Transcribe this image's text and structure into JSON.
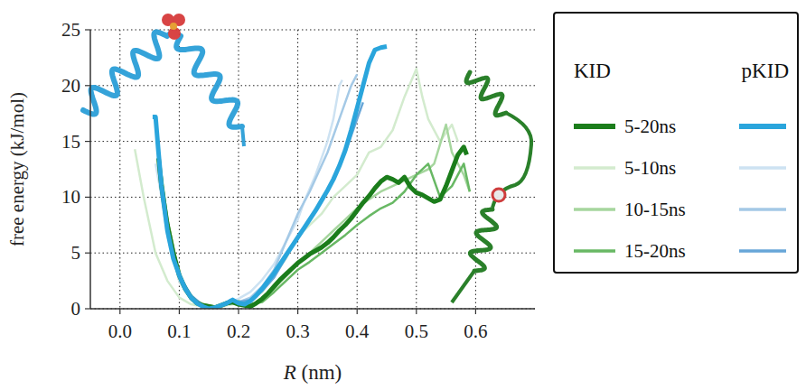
{
  "chart_data": {
    "type": "line",
    "x_label": "R (nm)",
    "y_label": "free energy (kJ/mol)",
    "xlim": [
      -0.05,
      0.7
    ],
    "ylim": [
      0,
      25
    ],
    "xticks": [
      {
        "value": 0,
        "label": "0.0"
      },
      0.1,
      0.2,
      0.3,
      0.4,
      0.5,
      0.6
    ],
    "yticks": [
      0,
      5,
      10,
      15,
      20,
      25
    ],
    "grid": true,
    "legend": "right",
    "groups": [
      "KID",
      "pKID"
    ],
    "series": [
      {
        "name": "5-20ns",
        "group": "KID",
        "color": "#1b7d1b",
        "line_style": "thick",
        "x": [
          0.065,
          0.07,
          0.08,
          0.09,
          0.1,
          0.11,
          0.12,
          0.13,
          0.14,
          0.15,
          0.16,
          0.17,
          0.18,
          0.19,
          0.2,
          0.21,
          0.22,
          0.23,
          0.24,
          0.25,
          0.26,
          0.27,
          0.28,
          0.29,
          0.3,
          0.31,
          0.32,
          0.33,
          0.34,
          0.35,
          0.36,
          0.37,
          0.38,
          0.39,
          0.4,
          0.41,
          0.42,
          0.43,
          0.44,
          0.45,
          0.46,
          0.47,
          0.48,
          0.49,
          0.5,
          0.51,
          0.52,
          0.53,
          0.54,
          0.55,
          0.56,
          0.57,
          0.58,
          0.585
        ],
        "values": [
          13.5,
          11,
          7.5,
          5,
          3,
          1.8,
          1,
          0.5,
          0.3,
          0.2,
          0.1,
          0.3,
          0.5,
          0.6,
          0.4,
          0.3,
          0.2,
          0.5,
          0.9,
          1.4,
          2,
          2.6,
          3.1,
          3.6,
          4.1,
          4.5,
          4.9,
          5.2,
          5.5,
          5.9,
          6.4,
          7,
          7.5,
          8.1,
          8.8,
          9.5,
          10.1,
          10.8,
          11.4,
          11.8,
          11.6,
          11.3,
          11.8,
          10.9,
          10.4,
          10.2,
          9.9,
          9.6,
          9.8,
          11,
          12.4,
          13.8,
          14.5,
          13.8
        ]
      },
      {
        "name": "5-10ns",
        "group": "KID",
        "color": "#d3ebce",
        "line_style": "solid",
        "x": [
          0.025,
          0.04,
          0.06,
          0.08,
          0.1,
          0.12,
          0.14,
          0.16,
          0.18,
          0.2,
          0.22,
          0.24,
          0.26,
          0.28,
          0.3,
          0.32,
          0.34,
          0.36,
          0.38,
          0.4,
          0.42,
          0.44,
          0.46,
          0.48,
          0.5,
          0.51,
          0.52,
          0.54,
          0.56,
          0.57
        ],
        "values": [
          14.3,
          10,
          5,
          2.5,
          1,
          0.4,
          0.2,
          0,
          0.3,
          0.5,
          0.8,
          1.5,
          3,
          4.5,
          6.5,
          7.5,
          8.5,
          10,
          11,
          12,
          14,
          14.5,
          16,
          19,
          21.5,
          19,
          17,
          15,
          16.5,
          15
        ]
      },
      {
        "name": "10-15ns",
        "group": "KID",
        "color": "#a6d69e",
        "line_style": "solid",
        "x": [
          0.065,
          0.08,
          0.1,
          0.12,
          0.14,
          0.16,
          0.18,
          0.2,
          0.22,
          0.24,
          0.26,
          0.28,
          0.3,
          0.32,
          0.34,
          0.36,
          0.38,
          0.4,
          0.42,
          0.44,
          0.46,
          0.48,
          0.5,
          0.52,
          0.53,
          0.55,
          0.56,
          0.58,
          0.59
        ],
        "values": [
          13,
          7,
          2.5,
          0.8,
          0.3,
          0.1,
          0.4,
          0.5,
          0.3,
          0.8,
          1.8,
          2.9,
          4,
          5,
          6,
          7,
          8,
          9,
          9.8,
          10.5,
          11,
          11.5,
          12,
          12.5,
          13,
          16.5,
          14,
          12,
          10.5
        ]
      },
      {
        "name": "15-20ns",
        "group": "KID",
        "color": "#68b864",
        "line_style": "solid",
        "x": [
          0.07,
          0.08,
          0.1,
          0.12,
          0.14,
          0.16,
          0.18,
          0.2,
          0.22,
          0.24,
          0.26,
          0.28,
          0.3,
          0.32,
          0.34,
          0.36,
          0.38,
          0.4,
          0.42,
          0.44,
          0.46,
          0.48,
          0.5,
          0.52,
          0.54,
          0.56,
          0.58,
          0.59
        ],
        "values": [
          12,
          8,
          3,
          1,
          0.4,
          0.2,
          0.5,
          0.7,
          0.4,
          0.6,
          1.5,
          2.5,
          3.5,
          4.2,
          5,
          5.8,
          6.6,
          7.5,
          8.3,
          9,
          9.5,
          10.5,
          12,
          13,
          10,
          11,
          13,
          10.5
        ]
      },
      {
        "name": "5-20ns",
        "group": "pKID",
        "color": "#2aa5dc",
        "line_style": "thick",
        "x": [
          0.055,
          0.06,
          0.065,
          0.07,
          0.08,
          0.09,
          0.1,
          0.11,
          0.12,
          0.13,
          0.14,
          0.15,
          0.16,
          0.17,
          0.18,
          0.19,
          0.2,
          0.21,
          0.22,
          0.23,
          0.24,
          0.25,
          0.26,
          0.27,
          0.28,
          0.29,
          0.3,
          0.31,
          0.32,
          0.33,
          0.34,
          0.35,
          0.36,
          0.37,
          0.38,
          0.39,
          0.4,
          0.41,
          0.42,
          0.43,
          0.44,
          0.45
        ],
        "values": [
          17.2,
          17.2,
          14,
          11,
          7,
          4.5,
          3,
          1.8,
          1,
          0.5,
          0.2,
          0,
          0.1,
          0.3,
          0.5,
          0.8,
          0.5,
          0.4,
          0.7,
          1.2,
          1.8,
          2.5,
          3.2,
          4,
          4.8,
          5.6,
          6.4,
          7.2,
          8,
          8.8,
          9.7,
          10.6,
          11.6,
          12.8,
          14.2,
          16,
          18,
          20,
          22,
          23.2,
          23.4,
          23.5
        ]
      },
      {
        "name": "5-10ns",
        "group": "pKID",
        "color": "#cde2f2",
        "line_style": "solid",
        "x": [
          0.06,
          0.07,
          0.08,
          0.1,
          0.12,
          0.14,
          0.16,
          0.18,
          0.2,
          0.22,
          0.24,
          0.26,
          0.28,
          0.3,
          0.31,
          0.33,
          0.35,
          0.36,
          0.37,
          0.375
        ],
        "values": [
          13,
          10,
          6.5,
          2.5,
          0.8,
          0.2,
          0.1,
          0.4,
          0.9,
          1.5,
          2.6,
          4,
          6,
          8,
          9.5,
          12,
          15,
          17,
          20,
          20.5
        ]
      },
      {
        "name": "10-15ns",
        "group": "pKID",
        "color": "#a4c9e6",
        "line_style": "solid",
        "x": [
          0.065,
          0.07,
          0.08,
          0.1,
          0.12,
          0.14,
          0.16,
          0.18,
          0.2,
          0.22,
          0.24,
          0.26,
          0.28,
          0.3,
          0.32,
          0.35,
          0.37,
          0.39,
          0.4
        ],
        "values": [
          12.5,
          10.5,
          7,
          2.8,
          1,
          0.3,
          0.1,
          0.5,
          0.6,
          1,
          2,
          3.5,
          6,
          8.5,
          10.5,
          14,
          17,
          20,
          21
        ]
      },
      {
        "name": "15-20ns",
        "group": "pKID",
        "color": "#67a6d8",
        "line_style": "solid",
        "x": [
          0.065,
          0.07,
          0.08,
          0.1,
          0.12,
          0.14,
          0.16,
          0.18,
          0.2,
          0.22,
          0.24,
          0.26,
          0.28,
          0.3,
          0.32,
          0.35,
          0.38,
          0.4,
          0.41
        ],
        "values": [
          13,
          11,
          7.5,
          3,
          1.2,
          0.3,
          0.1,
          0.4,
          0.6,
          0.8,
          1.6,
          2.8,
          4.6,
          6.5,
          8,
          10.5,
          14,
          17,
          18.5
        ]
      }
    ]
  }
}
